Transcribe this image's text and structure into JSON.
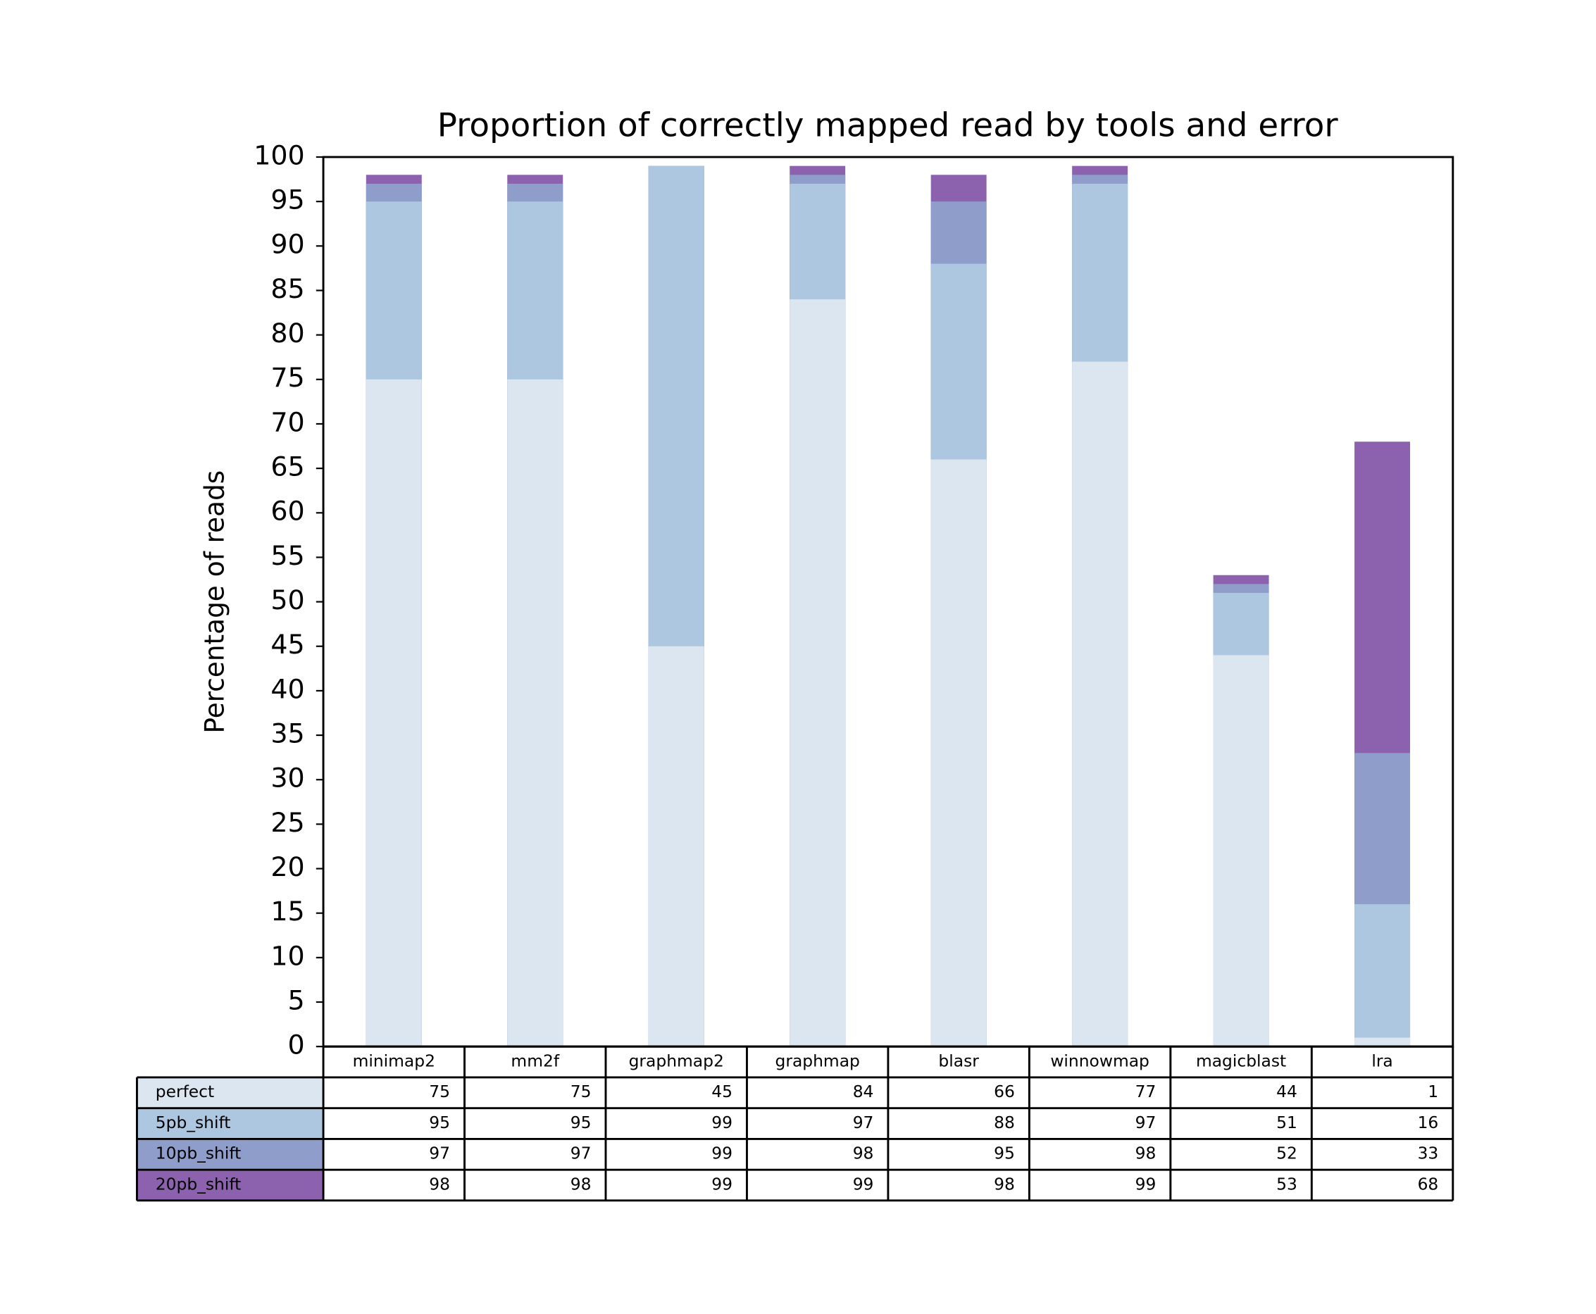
{
  "chart_data": {
    "type": "bar",
    "title": "Proportion of correctly mapped read by tools and error",
    "ylabel": "Percentage of reads",
    "categories": [
      "minimap2",
      "mm2f",
      "graphmap2",
      "graphmap",
      "blasr",
      "winnowmap",
      "magicblast",
      "lra"
    ],
    "series": [
      {
        "name": "perfect",
        "color": "#dbe6f0",
        "values": [
          75,
          75,
          45,
          84,
          66,
          77,
          44,
          1
        ]
      },
      {
        "name": "5pb_shift",
        "color": "#adc7e0",
        "values": [
          95,
          95,
          99,
          97,
          88,
          97,
          51,
          16
        ]
      },
      {
        "name": "10pb_shift",
        "color": "#8f9dca",
        "values": [
          97,
          97,
          99,
          98,
          95,
          98,
          52,
          33
        ]
      },
      {
        "name": "20pb_shift",
        "color": "#8c62ae",
        "values": [
          98,
          98,
          99,
          99,
          98,
          99,
          53,
          68
        ]
      }
    ],
    "ylim": [
      0,
      100
    ],
    "yticks": [
      0,
      5,
      10,
      15,
      20,
      25,
      30,
      35,
      40,
      45,
      50,
      55,
      60,
      65,
      70,
      75,
      80,
      85,
      90,
      95,
      100
    ]
  }
}
